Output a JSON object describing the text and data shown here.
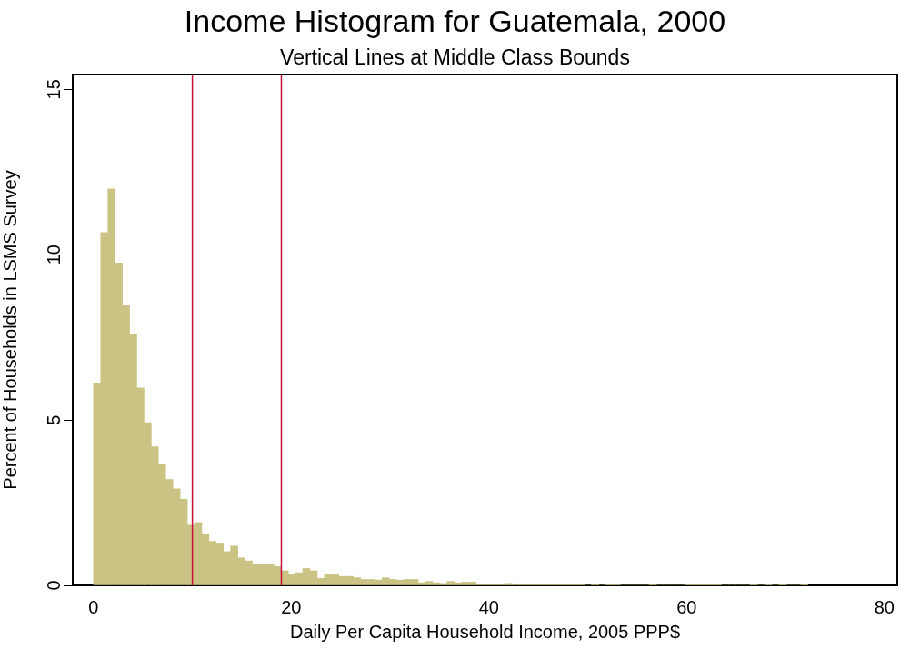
{
  "chart_data": {
    "type": "histogram",
    "title": "Income Histogram for Guatemala, 2000",
    "subtitle": "Vertical Lines at Middle Class Bounds",
    "xlabel": "Daily Per Capita Household Income, 2005 PPP$",
    "ylabel": "Percent of Households in LSMS Survey",
    "bins": [
      0,
      0.73,
      1.46,
      2.19,
      2.92,
      3.65,
      4.38,
      5.11,
      5.84,
      6.57,
      7.3,
      8.03,
      8.76,
      9.49,
      10.22,
      10.95,
      11.68,
      12.41,
      13.14,
      13.87,
      14.6,
      15.33,
      16.06,
      16.79,
      17.52,
      18.25,
      18.98,
      19.71,
      20.44,
      21.17,
      21.9,
      22.63,
      23.36,
      24.09,
      24.82,
      25.55,
      26.28,
      27.01,
      27.74,
      28.47,
      29.2,
      29.93,
      30.66,
      31.39,
      32.12,
      32.85,
      33.58,
      34.31,
      35.04,
      35.77,
      36.5,
      37.23,
      37.96,
      38.69,
      39.42,
      40.15,
      40.88,
      41.61,
      42.34,
      43.07,
      43.8,
      44.53,
      45.26,
      45.99,
      46.72,
      47.45,
      48.18,
      48.91,
      49.64,
      50.37,
      51.1,
      51.83,
      52.56,
      53.29,
      54.02,
      54.75,
      55.48,
      56.21,
      56.94,
      57.67,
      58.4,
      59.13,
      59.86,
      60.59,
      61.32,
      62.05,
      62.78,
      63.51,
      64.24,
      64.97,
      65.7,
      66.43,
      67.16,
      67.89,
      68.62,
      69.35,
      70.08,
      70.81,
      71.54,
      72.27
    ],
    "values": [
      6.12,
      10.67,
      11.99,
      9.75,
      8.46,
      7.58,
      5.97,
      4.92,
      4.19,
      3.65,
      3.2,
      2.92,
      2.6,
      1.82,
      1.9,
      1.56,
      1.33,
      1.28,
      1.02,
      1.19,
      0.83,
      0.74,
      0.65,
      0.62,
      0.65,
      0.57,
      0.44,
      0.34,
      0.38,
      0.51,
      0.44,
      0.21,
      0.34,
      0.32,
      0.27,
      0.27,
      0.23,
      0.18,
      0.18,
      0.16,
      0.23,
      0.18,
      0.16,
      0.18,
      0.18,
      0.08,
      0.12,
      0.08,
      0.06,
      0.12,
      0.08,
      0.1,
      0.1,
      0.04,
      0.04,
      0.04,
      0.03,
      0.06,
      0.03,
      0.03,
      0.03,
      0.03,
      0.03,
      0.03,
      0.03,
      0.03,
      0.03,
      0.03,
      0,
      0.03,
      0,
      0.03,
      0.03,
      0,
      0,
      0,
      0,
      0.03,
      0,
      0,
      0,
      0,
      0.03,
      0.03,
      0.03,
      0.03,
      0.03,
      0,
      0,
      0,
      0,
      0.03,
      0,
      0.03,
      0,
      0.03,
      0,
      0,
      0.03
    ],
    "color": "#cbc384",
    "xlim": [
      -2.1,
      81.3
    ],
    "xticks": [
      0,
      20,
      40,
      60,
      80
    ],
    "ylim": [
      0,
      15.45
    ],
    "yticks": [
      0,
      5,
      10,
      15
    ],
    "ref_lines": [
      {
        "axis": "x",
        "value": 10,
        "color": "#c8103c"
      },
      {
        "axis": "x",
        "value": 19,
        "color": "#c8103c"
      }
    ],
    "grid": false,
    "legend": false
  }
}
